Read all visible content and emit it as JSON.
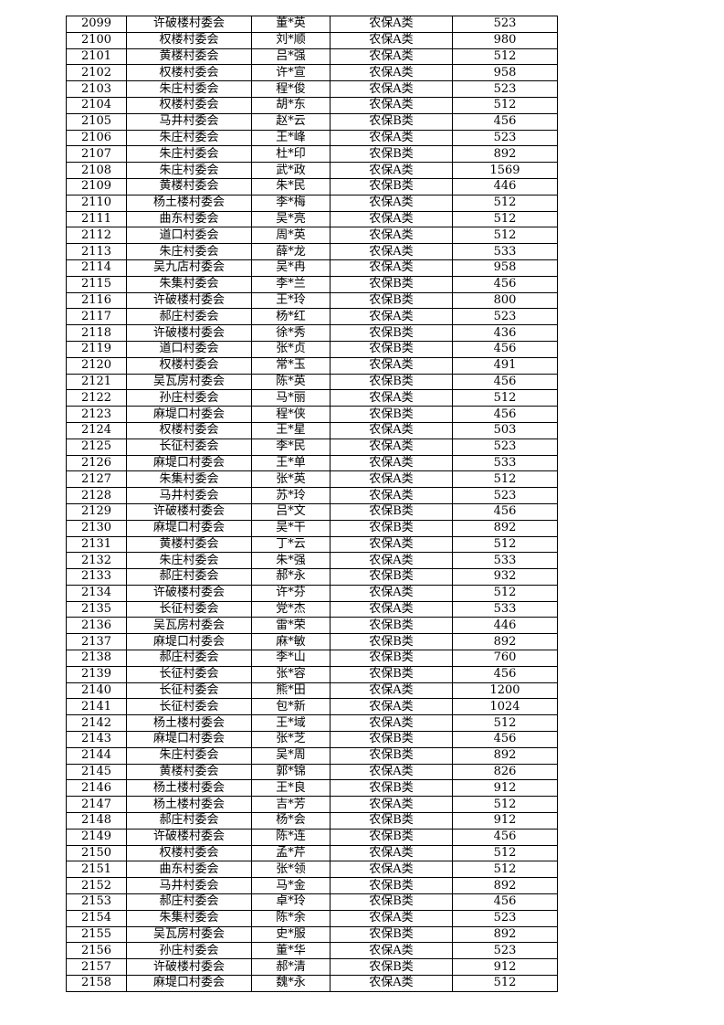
{
  "table": {
    "rows": [
      [
        "2099",
        "许破楼村委会",
        "董*英",
        "农保A类",
        "523"
      ],
      [
        "2100",
        "权楼村委会",
        "刘*顺",
        "农保A类",
        "980"
      ],
      [
        "2101",
        "黄楼村委会",
        "吕*强",
        "农保A类",
        "512"
      ],
      [
        "2102",
        "权楼村委会",
        "许*宣",
        "农保A类",
        "958"
      ],
      [
        "2103",
        "朱庄村委会",
        "程*俊",
        "农保A类",
        "523"
      ],
      [
        "2104",
        "权楼村委会",
        "胡*东",
        "农保A类",
        "512"
      ],
      [
        "2105",
        "马井村委会",
        "赵*云",
        "农保B类",
        "456"
      ],
      [
        "2106",
        "朱庄村委会",
        "王*峰",
        "农保A类",
        "523"
      ],
      [
        "2107",
        "朱庄村委会",
        "杜*印",
        "农保B类",
        "892"
      ],
      [
        "2108",
        "朱庄村委会",
        "武*政",
        "农保A类",
        "1569"
      ],
      [
        "2109",
        "黄楼村委会",
        "朱*民",
        "农保B类",
        "446"
      ],
      [
        "2110",
        "杨土楼村委会",
        "李*梅",
        "农保A类",
        "512"
      ],
      [
        "2111",
        "曲东村委会",
        "吴*亮",
        "农保A类",
        "512"
      ],
      [
        "2112",
        "道口村委会",
        "周*英",
        "农保A类",
        "512"
      ],
      [
        "2113",
        "朱庄村委会",
        "薛*龙",
        "农保A类",
        "533"
      ],
      [
        "2114",
        "吴九店村委会",
        "吴*冉",
        "农保A类",
        "958"
      ],
      [
        "2115",
        "朱集村委会",
        "李*兰",
        "农保B类",
        "456"
      ],
      [
        "2116",
        "许破楼村委会",
        "王*玲",
        "农保B类",
        "800"
      ],
      [
        "2117",
        "郝庄村委会",
        "杨*红",
        "农保A类",
        "523"
      ],
      [
        "2118",
        "许破楼村委会",
        "徐*秀",
        "农保B类",
        "436"
      ],
      [
        "2119",
        "道口村委会",
        "张*贞",
        "农保B类",
        "456"
      ],
      [
        "2120",
        "权楼村委会",
        "常*玉",
        "农保A类",
        "491"
      ],
      [
        "2121",
        "吴瓦房村委会",
        "陈*英",
        "农保B类",
        "456"
      ],
      [
        "2122",
        "孙庄村委会",
        "马*丽",
        "农保A类",
        "512"
      ],
      [
        "2123",
        "麻堤口村委会",
        "程*侠",
        "农保B类",
        "456"
      ],
      [
        "2124",
        "权楼村委会",
        "王*星",
        "农保A类",
        "503"
      ],
      [
        "2125",
        "长征村委会",
        "李*民",
        "农保A类",
        "523"
      ],
      [
        "2126",
        "麻堤口村委会",
        "王*单",
        "农保A类",
        "533"
      ],
      [
        "2127",
        "朱集村委会",
        "张*英",
        "农保A类",
        "512"
      ],
      [
        "2128",
        "马井村委会",
        "苏*玲",
        "农保A类",
        "523"
      ],
      [
        "2129",
        "许破楼村委会",
        "吕*文",
        "农保B类",
        "456"
      ],
      [
        "2130",
        "麻堤口村委会",
        "吴*干",
        "农保B类",
        "892"
      ],
      [
        "2131",
        "黄楼村委会",
        "丁*云",
        "农保A类",
        "512"
      ],
      [
        "2132",
        "朱庄村委会",
        "朱*强",
        "农保A类",
        "533"
      ],
      [
        "2133",
        "郝庄村委会",
        "郝*永",
        "农保B类",
        "932"
      ],
      [
        "2134",
        "许破楼村委会",
        "许*芬",
        "农保A类",
        "512"
      ],
      [
        "2135",
        "长征村委会",
        "党*杰",
        "农保A类",
        "533"
      ],
      [
        "2136",
        "吴瓦房村委会",
        "雷*荣",
        "农保B类",
        "446"
      ],
      [
        "2137",
        "麻堤口村委会",
        "麻*敏",
        "农保B类",
        "892"
      ],
      [
        "2138",
        "郝庄村委会",
        "李*山",
        "农保B类",
        "760"
      ],
      [
        "2139",
        "长征村委会",
        "张*容",
        "农保B类",
        "456"
      ],
      [
        "2140",
        "长征村委会",
        "熊*田",
        "农保A类",
        "1200"
      ],
      [
        "2141",
        "长征村委会",
        "包*新",
        "农保A类",
        "1024"
      ],
      [
        "2142",
        "杨土楼村委会",
        "王*域",
        "农保A类",
        "512"
      ],
      [
        "2143",
        "麻堤口村委会",
        "张*芝",
        "农保B类",
        "456"
      ],
      [
        "2144",
        "朱庄村委会",
        "吴*周",
        "农保B类",
        "892"
      ],
      [
        "2145",
        "黄楼村委会",
        "郭*锦",
        "农保A类",
        "826"
      ],
      [
        "2146",
        "杨土楼村委会",
        "王*良",
        "农保B类",
        "912"
      ],
      [
        "2147",
        "杨土楼村委会",
        "吉*芳",
        "农保A类",
        "512"
      ],
      [
        "2148",
        "郝庄村委会",
        "杨*会",
        "农保B类",
        "912"
      ],
      [
        "2149",
        "许破楼村委会",
        "陈*连",
        "农保B类",
        "456"
      ],
      [
        "2150",
        "权楼村委会",
        "孟*芹",
        "农保A类",
        "512"
      ],
      [
        "2151",
        "曲东村委会",
        "张*领",
        "农保A类",
        "512"
      ],
      [
        "2152",
        "马井村委会",
        "马*金",
        "农保B类",
        "892"
      ],
      [
        "2153",
        "郝庄村委会",
        "卓*玲",
        "农保B类",
        "456"
      ],
      [
        "2154",
        "朱集村委会",
        "陈*余",
        "农保A类",
        "523"
      ],
      [
        "2155",
        "吴瓦房村委会",
        "史*服",
        "农保B类",
        "892"
      ],
      [
        "2156",
        "孙庄村委会",
        "董*华",
        "农保A类",
        "523"
      ],
      [
        "2157",
        "许破楼村委会",
        "郝*清",
        "农保B类",
        "912"
      ],
      [
        "2158",
        "麻堤口村委会",
        "魏*永",
        "农保A类",
        "512"
      ]
    ]
  }
}
